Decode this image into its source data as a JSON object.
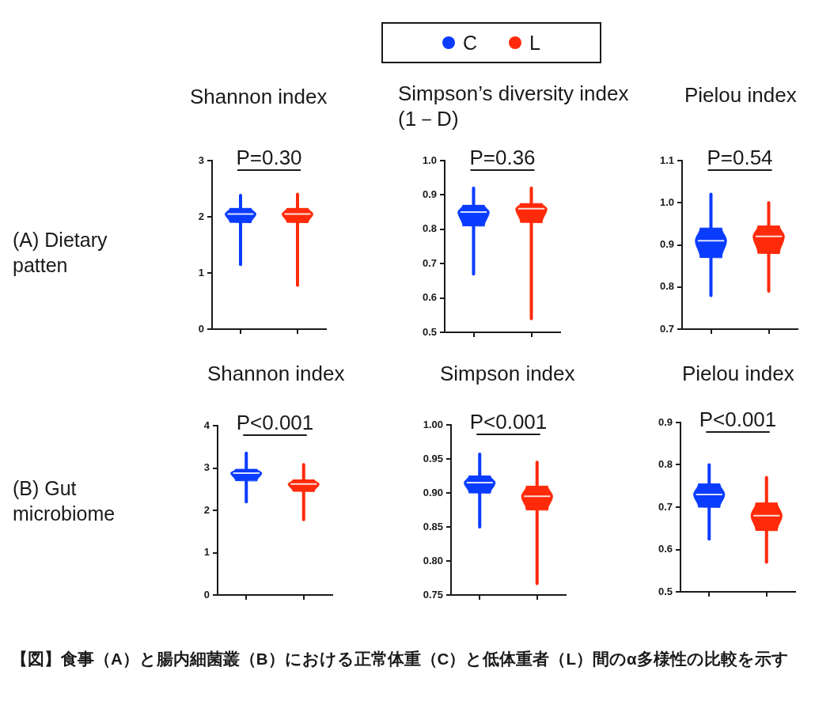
{
  "chart_data": [
    {
      "type": "box",
      "title": "Shannon index",
      "categories": [
        null,
        null
      ],
      "series": [
        {
          "name": "C",
          "color": "#0a3cff",
          "boxes": [
            {
              "low": 1.15,
              "q1": 1.9,
              "median": 2.05,
              "q3": 2.15,
              "high": 2.38
            },
            null
          ]
        },
        {
          "name": "L",
          "color": "#ff2a0a",
          "boxes": [
            null,
            {
              "low": 0.78,
              "q1": 1.9,
              "median": 2.05,
              "q3": 2.15,
              "high": 2.4
            }
          ]
        }
      ],
      "ylim": [
        0,
        3
      ],
      "yticks": [
        0,
        1,
        2,
        3
      ],
      "tick_labels": "y",
      "legend": "top",
      "annotations": [
        "P=0.30",
        "(A) Dietary patten"
      ]
    },
    {
      "type": "box",
      "title": "Simpson’s diversity index (1－D)",
      "categories": [
        null,
        null
      ],
      "series": [
        {
          "color": "#0a3cff",
          "boxes": [
            {
              "low": 0.67,
              "q1": 0.81,
              "median": 0.85,
              "q3": 0.87,
              "high": 0.92
            },
            null
          ]
        },
        {
          "color": "#ff2a0a",
          "boxes": [
            null,
            {
              "low": 0.54,
              "q1": 0.82,
              "median": 0.86,
              "q3": 0.875,
              "high": 0.92
            }
          ]
        }
      ],
      "ylim": [
        0.5,
        1.0
      ],
      "yticks": [
        0.5,
        0.6,
        0.7,
        0.8,
        0.9,
        {
          "value": 1,
          "label": "1.0"
        }
      ],
      "tick_labels": "y",
      "annotations": [
        "P=0.36"
      ]
    },
    {
      "type": "box",
      "title": "Pielou index",
      "categories": [
        null,
        null
      ],
      "series": [
        {
          "color": "#0a3cff",
          "boxes": [
            {
              "low": 0.78,
              "q1": 0.87,
              "median": 0.91,
              "q3": 0.94,
              "high": 1.02
            },
            null
          ]
        },
        {
          "color": "#ff2a0a",
          "boxes": [
            null,
            {
              "low": 0.79,
              "q1": 0.88,
              "median": 0.92,
              "q3": 0.945,
              "high": 1.0
            }
          ]
        }
      ],
      "ylim": [
        0.7,
        1.1
      ],
      "yticks": [
        0.7,
        0.8,
        0.9,
        {
          "value": 1,
          "label": "1.0"
        },
        1.1
      ],
      "tick_labels": "y",
      "annotations": [
        "P=0.54"
      ]
    },
    {
      "type": "box",
      "title": "Shannon index",
      "categories": [
        null,
        null
      ],
      "series": [
        {
          "color": "#0a3cff",
          "boxes": [
            {
              "low": 2.2,
              "q1": 2.7,
              "median": 2.88,
              "q3": 2.97,
              "high": 3.35
            },
            null
          ]
        },
        {
          "color": "#ff2a0a",
          "boxes": [
            null,
            {
              "low": 1.78,
              "q1": 2.45,
              "median": 2.62,
              "q3": 2.72,
              "high": 3.08
            }
          ]
        }
      ],
      "ylim": [
        0,
        4
      ],
      "yticks": [
        0,
        1,
        2,
        3,
        4
      ],
      "tick_labels": "y",
      "annotations": [
        "P<0.001",
        "(B) Gut microbiome"
      ]
    },
    {
      "type": "box",
      "title": "Simpson index",
      "categories": [
        null,
        null
      ],
      "series": [
        {
          "color": "#0a3cff",
          "boxes": [
            {
              "low": 0.85,
              "q1": 0.9,
              "median": 0.915,
              "q3": 0.925,
              "high": 0.957
            },
            null
          ]
        },
        {
          "color": "#ff2a0a",
          "boxes": [
            null,
            {
              "low": 0.767,
              "q1": 0.875,
              "median": 0.895,
              "q3": 0.91,
              "high": 0.945
            }
          ]
        }
      ],
      "ylim": [
        0.75,
        1.0
      ],
      "yticks": [
        0.75,
        {
          "value": 0.8,
          "label": "0.80"
        },
        0.85,
        {
          "value": 0.9,
          "label": "0.90"
        },
        0.95,
        {
          "value": 1,
          "label": "1.00"
        }
      ],
      "tick_labels": "y",
      "annotations": [
        "P<0.001"
      ]
    },
    {
      "type": "box",
      "title": "Pielou index",
      "categories": [
        null,
        null
      ],
      "series": [
        {
          "color": "#0a3cff",
          "boxes": [
            {
              "low": 0.625,
              "q1": 0.7,
              "median": 0.73,
              "q3": 0.755,
              "high": 0.8
            },
            null
          ]
        },
        {
          "color": "#ff2a0a",
          "boxes": [
            null,
            {
              "low": 0.57,
              "q1": 0.645,
              "median": 0.68,
              "q3": 0.71,
              "high": 0.77
            }
          ]
        }
      ],
      "ylim": [
        0.5,
        0.9
      ],
      "yticks": [
        0.5,
        0.6,
        0.7,
        0.8,
        0.9
      ],
      "tick_labels": "y",
      "annotations": [
        "P<0.001",
        "【図】食事（A）と腸内細菌叢（B）における正常体重（C）と低体重者（L）間のα多様性の比較を示す"
      ]
    }
  ]
}
